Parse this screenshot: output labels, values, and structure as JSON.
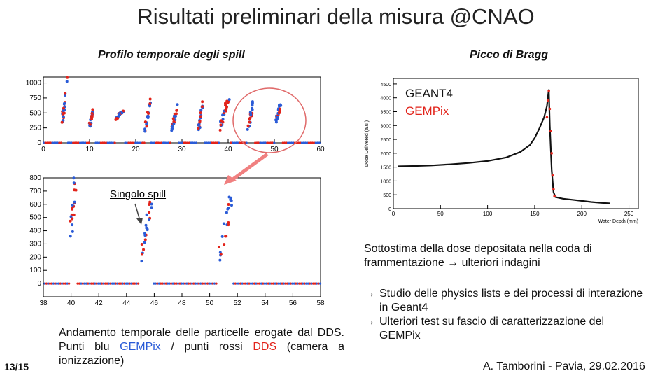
{
  "slide": {
    "title": "Risultati preliminari della misura @CNAO",
    "left_subtitle": "Profilo temporale degli spill",
    "right_subtitle": "Picco di Bragg",
    "single_spill_label": "Singolo spill",
    "geant4_label": "GEANT4",
    "gempix_label": "GEMPix",
    "caption_part1": "Andamento temporale delle particelle erogate dal DDS. Punti blu ",
    "caption_gempix": "GEMPix",
    "caption_part2": " / punti rossi ",
    "caption_dds": "DDS",
    "caption_part3": " (camera a ionizzazione)",
    "note": "Sottostima della dose depositata nella coda di frammentazione",
    "note_arrow": "→",
    "note_tail": "ulteriori indagini",
    "bullets": [
      "Studio delle physics lists e dei processi di interazione in Geant4",
      "Ulteriori test su fascio di caratterizzazione del GEMPix"
    ],
    "bullet_arrow": "→",
    "page": "13/15",
    "author": "A. Tamborini - Pavia, 29.02.2016"
  },
  "colors": {
    "blue": "#2a5bd7",
    "red": "#e2231a",
    "circle": "#e06a6a",
    "arrow": "#f08080"
  },
  "chart_data": [
    {
      "type": "scatter",
      "name_hint": "spill-profile",
      "x_ticks": [
        0,
        10,
        20,
        30,
        40,
        50,
        60
      ],
      "y_ticks": [
        0,
        250,
        500,
        750,
        1000
      ],
      "xlim": [
        0,
        60
      ],
      "ylim": [
        0,
        1100
      ],
      "spills": [
        {
          "x0": 4.0,
          "x1": 5.2,
          "y0": 250,
          "y1": 1080
        },
        {
          "x0": 10.0,
          "x1": 11.0,
          "y0": 300,
          "y1": 620
        },
        {
          "x0": 15.6,
          "x1": 17.4,
          "y0": 380,
          "y1": 560
        },
        {
          "x0": 22.0,
          "x1": 23.2,
          "y0": 200,
          "y1": 720
        },
        {
          "x0": 27.8,
          "x1": 29.0,
          "y0": 250,
          "y1": 600
        },
        {
          "x0": 33.5,
          "x1": 34.5,
          "y0": 200,
          "y1": 650
        },
        {
          "x0": 38.2,
          "x1": 40.2,
          "y0": 250,
          "y1": 780
        },
        {
          "x0": 44.2,
          "x1": 45.4,
          "y0": 200,
          "y1": 650
        },
        {
          "x0": 50.2,
          "x1": 51.4,
          "y0": 300,
          "y1": 700
        }
      ]
    },
    {
      "type": "scatter",
      "name_hint": "single-spill",
      "x_ticks": [
        38,
        40,
        42,
        44,
        46,
        48,
        50,
        52,
        54,
        56,
        58
      ],
      "y_ticks": [
        0,
        100,
        200,
        300,
        400,
        500,
        600,
        700,
        800
      ],
      "xlim": [
        38,
        58
      ],
      "ylim": [
        -100,
        800
      ],
      "spills": [
        {
          "x0": 40.0,
          "x1": 40.3,
          "y0": 380,
          "y1": 760
        },
        {
          "x0": 45.0,
          "x1": 45.8,
          "y0": 200,
          "y1": 600
        },
        {
          "x0": 50.7,
          "x1": 51.5,
          "y0": 170,
          "y1": 650
        }
      ],
      "baseline": 0
    },
    {
      "type": "line",
      "name_hint": "bragg-peak",
      "xlabel": "Water Depth (mm)",
      "ylabel": "Dose Delivered (a.u.)",
      "x_ticks": [
        0,
        50,
        100,
        150,
        200,
        250
      ],
      "y_ticks": [
        0,
        500,
        1000,
        1500,
        2000,
        2500,
        3000,
        3500,
        4000,
        4500
      ],
      "xlim": [
        0,
        260
      ],
      "ylim": [
        0,
        4700
      ],
      "series": [
        {
          "name": "GEANT4",
          "x": [
            5,
            20,
            40,
            60,
            80,
            100,
            120,
            135,
            145,
            150,
            155,
            160,
            163,
            165,
            166,
            168,
            170,
            172,
            180,
            190,
            200,
            210,
            220,
            230
          ],
          "y": [
            1530,
            1540,
            1560,
            1600,
            1650,
            1720,
            1850,
            2050,
            2300,
            2550,
            2900,
            3300,
            3700,
            4300,
            3000,
            1400,
            600,
            420,
            360,
            320,
            280,
            240,
            210,
            190
          ]
        },
        {
          "name": "GEMPix",
          "x": [
            163,
            164,
            165,
            166,
            167,
            168,
            169,
            170,
            171
          ],
          "y": [
            3300,
            3900,
            4250,
            3600,
            2800,
            2000,
            1200,
            700,
            450
          ]
        }
      ]
    }
  ]
}
